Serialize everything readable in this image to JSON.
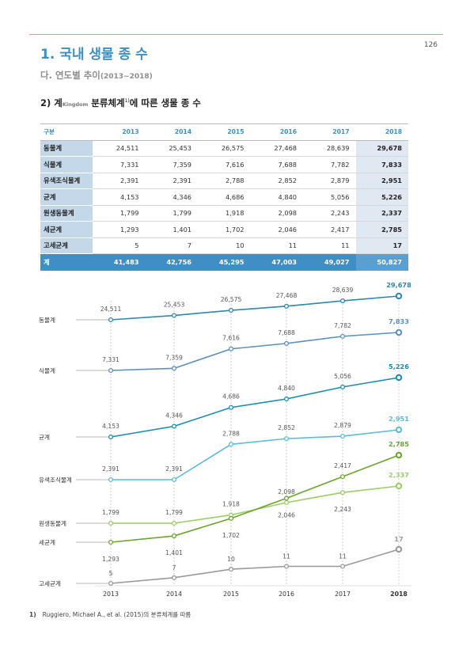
{
  "page": {
    "number": "126",
    "title": "1. 국내 생물 종 수",
    "subtitle_main": "다. 연도별 추이",
    "subtitle_range": "(2013~2018)",
    "section_prefix": "2) 계",
    "section_kingdom": "Kingdom",
    "section_suffix": " 분류체계",
    "section_sup": "1)",
    "section_end": "에 따른 생물 종 수",
    "footnote_num": "1)",
    "footnote_text": "Ruggiero, Michael A., et al. (2015)의 분류체계를 따름"
  },
  "table": {
    "header_label": "구분",
    "years": [
      "2013",
      "2014",
      "2015",
      "2016",
      "2017",
      "2018"
    ],
    "rows": [
      {
        "name": "동물계",
        "values": [
          "24,511",
          "25,453",
          "26,575",
          "27,468",
          "28,639",
          "29,678"
        ]
      },
      {
        "name": "식물계",
        "values": [
          "7,331",
          "7,359",
          "7,616",
          "7,688",
          "7,782",
          "7,833"
        ]
      },
      {
        "name": "유색조식물계",
        "values": [
          "2,391",
          "2,391",
          "2,788",
          "2,852",
          "2,879",
          "2,951"
        ]
      },
      {
        "name": "균계",
        "values": [
          "4,153",
          "4,346",
          "4,686",
          "4,840",
          "5,056",
          "5,226"
        ]
      },
      {
        "name": "원생동물계",
        "values": [
          "1,799",
          "1,799",
          "1,918",
          "2,098",
          "2,243",
          "2,337"
        ]
      },
      {
        "name": "세균계",
        "values": [
          "1,293",
          "1,401",
          "1,702",
          "2,046",
          "2,417",
          "2,785"
        ]
      },
      {
        "name": "고세균계",
        "values": [
          "5",
          "7",
          "10",
          "11",
          "11",
          "17"
        ]
      }
    ],
    "total": {
      "name": "계",
      "values": [
        "41,483",
        "42,756",
        "45,295",
        "47,003",
        "49,027",
        "50,827"
      ]
    }
  },
  "chart_data": {
    "type": "line",
    "x": [
      "2013",
      "2014",
      "2015",
      "2016",
      "2017",
      "2018"
    ],
    "series": [
      {
        "name": "동물계",
        "color": "#2e86ab",
        "values": [
          24511,
          25453,
          26575,
          27468,
          28639,
          29678
        ],
        "labels": [
          "24,511",
          "25,453",
          "26,575",
          "27,468",
          "28,639",
          "29,678"
        ]
      },
      {
        "name": "식물계",
        "color": "#5a8fc0",
        "values": [
          7331,
          7359,
          7616,
          7688,
          7782,
          7833
        ],
        "labels": [
          "7,331",
          "7,359",
          "7,616",
          "7,688",
          "7,782",
          "7,833"
        ]
      },
      {
        "name": "균계",
        "color": "#1a8bb0",
        "values": [
          4153,
          4346,
          4686,
          4840,
          5056,
          5226
        ],
        "labels": [
          "4,153",
          "4,346",
          "4,686",
          "4,840",
          "5,056",
          "5,226"
        ]
      },
      {
        "name": "유색조식물계",
        "color": "#5bbcd6",
        "values": [
          2391,
          2391,
          2788,
          2852,
          2879,
          2951
        ],
        "labels": [
          "2,391",
          "2,391",
          "2,788",
          "2,852",
          "2,879",
          "2,951"
        ]
      },
      {
        "name": "원생동물계",
        "color": "#9ccc65",
        "values": [
          1799,
          1799,
          1918,
          2098,
          2243,
          2337
        ],
        "labels": [
          "1,799",
          "1,799",
          "1,918",
          "2,098",
          "2,243",
          "2,337"
        ]
      },
      {
        "name": "세균계",
        "color": "#6aa42e",
        "values": [
          1293,
          1401,
          1702,
          2046,
          2417,
          2785
        ],
        "labels": [
          "1,293",
          "1,401",
          "1,702",
          "2,046",
          "2,417",
          "2,785"
        ]
      },
      {
        "name": "고세균계",
        "color": "#999999",
        "values": [
          5,
          7,
          10,
          11,
          11,
          17
        ],
        "labels": [
          "5",
          "7",
          "10",
          "11",
          "11",
          "17"
        ]
      }
    ]
  }
}
